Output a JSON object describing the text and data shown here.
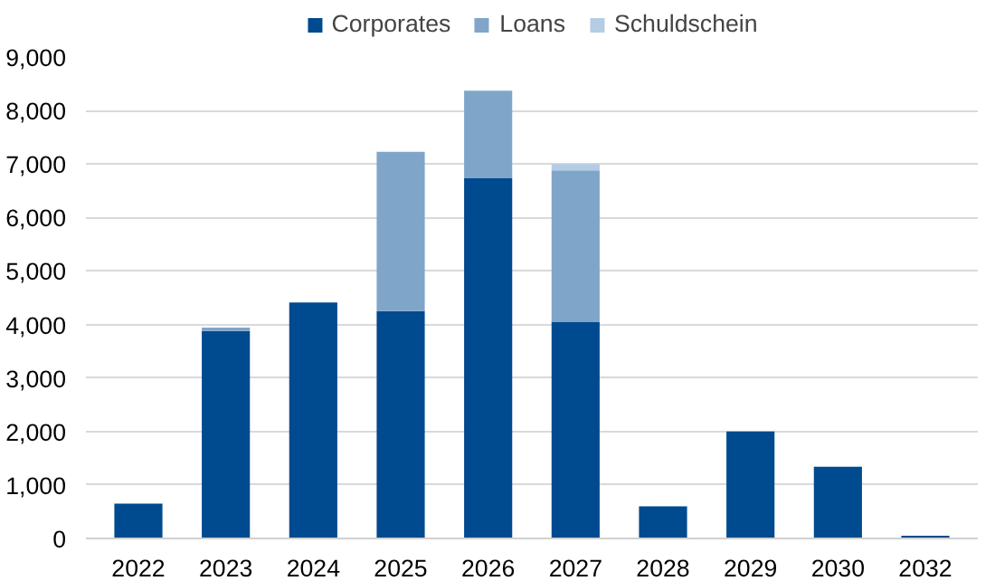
{
  "chart_data": {
    "type": "bar",
    "stacked": true,
    "categories": [
      "2022",
      "2023",
      "2024",
      "2025",
      "2026",
      "2027",
      "2028",
      "2029",
      "2030",
      "2032"
    ],
    "series": [
      {
        "name": "Corporates",
        "color": "#004a8f",
        "values": [
          650,
          3880,
          4410,
          4250,
          6740,
          4050,
          600,
          2000,
          1340,
          50
        ]
      },
      {
        "name": "Loans",
        "color": "#7fa6c9",
        "values": [
          0,
          60,
          0,
          2980,
          1630,
          2830,
          0,
          0,
          0,
          0
        ]
      },
      {
        "name": "Schuldschein",
        "color": "#b4cde4",
        "values": [
          0,
          null,
          0,
          0,
          0,
          120,
          0,
          0,
          0,
          0
        ]
      }
    ],
    "ylim": [
      0,
      9000
    ],
    "yticks": [
      {
        "value": 0,
        "label": "0"
      },
      {
        "value": 1000,
        "label": "1,000"
      },
      {
        "value": 2000,
        "label": "2,000"
      },
      {
        "value": 3000,
        "label": "3,000"
      },
      {
        "value": 4000,
        "label": "4,000"
      },
      {
        "value": 5000,
        "label": "5,000"
      },
      {
        "value": 6000,
        "label": "6,000"
      },
      {
        "value": 7000,
        "label": "7,000"
      },
      {
        "value": 8000,
        "label": "8,000"
      },
      {
        "value": 9000,
        "label": "9,000"
      }
    ],
    "grid": "y",
    "legend": "top"
  }
}
